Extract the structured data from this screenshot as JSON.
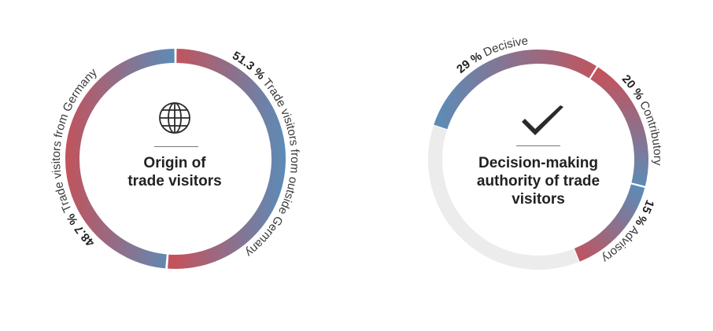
{
  "colors": {
    "blue": "#5b8cb8",
    "red": "#c2535d",
    "remainder": "#ececec"
  },
  "chart_data": [
    {
      "type": "pie",
      "style": "donut",
      "title": "Origin of trade visitors",
      "icon": "globe-icon",
      "unit": "%",
      "slices": [
        {
          "value": 51.3,
          "value_label": "51.3 %",
          "label": "Trade visitors from outside Germany"
        },
        {
          "value": 48.7,
          "value_label": "48.7 %",
          "label": "Trade visitors from Germany"
        }
      ]
    },
    {
      "type": "pie",
      "style": "donut",
      "title": "Decision-making authority of trade visitors",
      "icon": "checkmark-icon",
      "unit": "%",
      "slices": [
        {
          "value": 29,
          "value_label": "29 %",
          "label": "Decisive"
        },
        {
          "value": 20,
          "value_label": "20 %",
          "label": "Contributory"
        },
        {
          "value": 15,
          "value_label": "15 %",
          "label": "Advisory"
        }
      ],
      "remainder": 36
    }
  ]
}
